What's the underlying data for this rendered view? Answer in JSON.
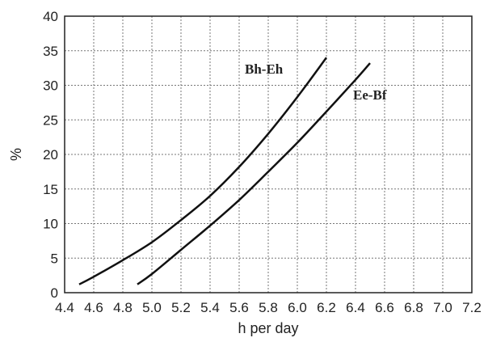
{
  "chart_data": {
    "type": "line",
    "xlabel": "h per day",
    "ylabel": "%",
    "xlim": [
      4.4,
      7.2
    ],
    "ylim": [
      0,
      40
    ],
    "x_ticks": [
      "4.4",
      "4.6",
      "4.8",
      "5.0",
      "5.2",
      "5.4",
      "5.6",
      "5.8",
      "6.0",
      "6.2",
      "6.4",
      "6.6",
      "6.8",
      "7.0",
      "7.2"
    ],
    "y_ticks": [
      "0",
      "5",
      "10",
      "15",
      "20",
      "25",
      "30",
      "35",
      "40"
    ],
    "grid": true,
    "series": [
      {
        "name": "Bh-Eh",
        "x": [
          4.5,
          4.6,
          4.8,
          5.0,
          5.2,
          5.4,
          5.6,
          5.8,
          6.0,
          6.2
        ],
        "y": [
          1.2,
          2.3,
          4.7,
          7.3,
          10.5,
          14.0,
          18.2,
          23.0,
          28.3,
          34.0
        ]
      },
      {
        "name": "Ee-Bf",
        "x": [
          4.9,
          5.0,
          5.2,
          5.4,
          5.6,
          5.8,
          6.0,
          6.2,
          6.4,
          6.5
        ],
        "y": [
          1.2,
          2.7,
          6.2,
          9.7,
          13.4,
          17.5,
          21.7,
          26.2,
          30.8,
          33.2
        ]
      }
    ]
  }
}
